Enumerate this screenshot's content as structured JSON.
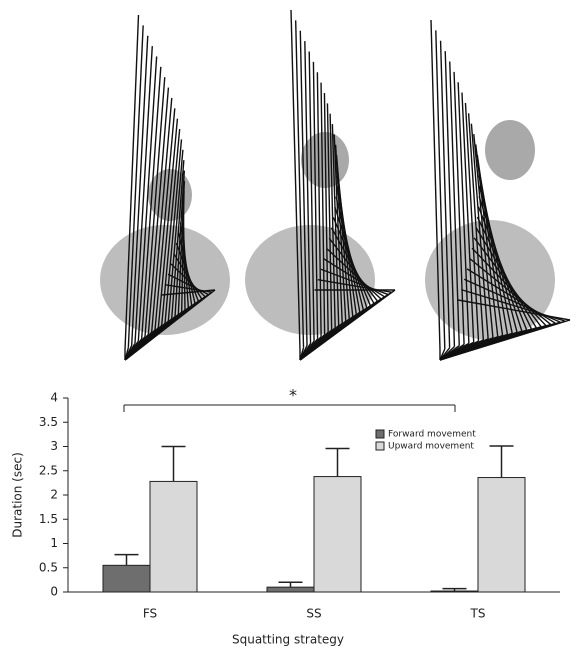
{
  "chart_data": {
    "type": "bar",
    "xlabel": "Squatting strategy",
    "ylabel": "Duration (sec)",
    "annotation": "*",
    "categories": [
      "FS",
      "SS",
      "TS"
    ],
    "series": [
      {
        "name": "Forward movement",
        "color": "#6e6e6e",
        "values": [
          0.55,
          0.1,
          0.02
        ],
        "errors": [
          0.22,
          0.1,
          0.05
        ]
      },
      {
        "name": "Upward movement",
        "color": "#d9d9d9",
        "values": [
          2.28,
          2.38,
          2.36
        ],
        "errors": [
          0.72,
          0.58,
          0.65
        ]
      }
    ],
    "ylim": [
      0,
      4
    ],
    "yticks": [
      0,
      0.5,
      1,
      1.5,
      2,
      2.5,
      3,
      3.5,
      4
    ]
  }
}
